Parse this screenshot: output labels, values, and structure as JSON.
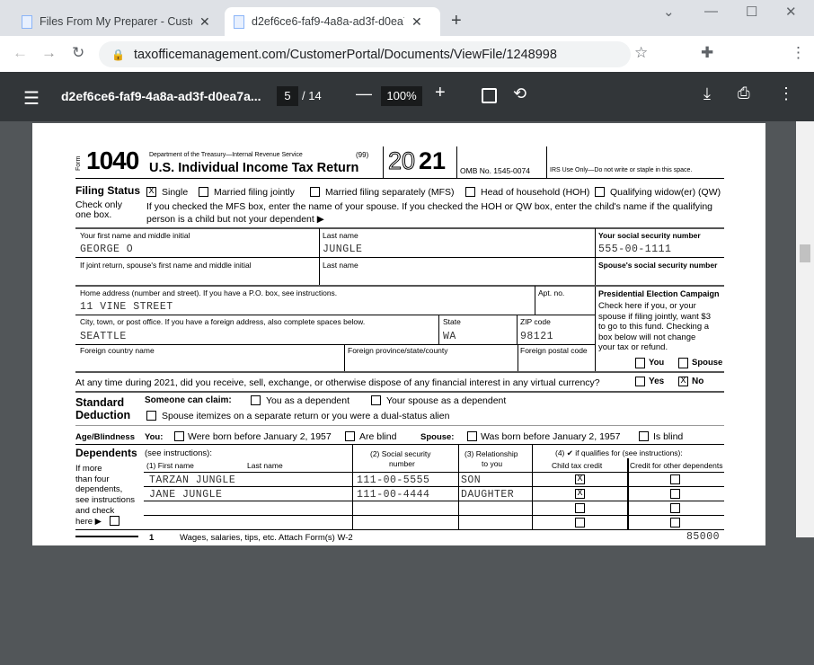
{
  "browser": {
    "tabs": [
      {
        "title": "Files From My Preparer - Customer Portal"
      },
      {
        "title": "d2ef6ce6-faf9-4a8a-ad3f-d0ea7a"
      }
    ],
    "url": "taxofficemanagement.com/CustomerPortal/Documents/ViewFile/1248998"
  },
  "pdf": {
    "title": "d2ef6ce6-faf9-4a8a-ad3f-d0ea7a...",
    "page": "5",
    "total": "/ 14",
    "zoom": "100%"
  },
  "form": {
    "form_label": "Form",
    "number": "1040",
    "dept": "Department of the Treasury—Internal Revenue Service",
    "code": "(99)",
    "title": "U.S. Individual Income Tax Return",
    "year_light": "20",
    "year_bold": "21",
    "omb": "OMB No. 1545-0074",
    "irs_use": "IRS Use Only—Do not write or staple in this space.",
    "filing_status": {
      "label": "Filing Status",
      "sub1": "Check only",
      "sub2": "one box.",
      "options": [
        {
          "label": "Single",
          "checked": true
        },
        {
          "label": "Married filing jointly",
          "checked": false
        },
        {
          "label": "Married filing separately (MFS)",
          "checked": false
        },
        {
          "label": "Head of household (HOH)",
          "checked": false
        },
        {
          "label": "Qualifying widow(er) (QW)",
          "checked": false
        }
      ],
      "note1": "If you checked the MFS box, enter the name of your spouse. If you checked the HOH or QW box, enter the child's name if the qualifying",
      "note2": "person is a child but not your dependent ▶"
    },
    "labels": {
      "first": "Your first name and middle initial",
      "last": "Last name",
      "ssn": "Your social security number",
      "sp_first": "If joint return, spouse's first name and middle initial",
      "sp_last": "Last name",
      "sp_ssn": "Spouse's social security number",
      "home": "Home address (number and street). If you have a P.O. box, see instructions.",
      "apt": "Apt. no.",
      "city": "City, town, or post office. If you have a foreign address, also complete spaces below.",
      "state": "State",
      "zip": "ZIP code",
      "fcountry": "Foreign country name",
      "fprov": "Foreign province/state/county",
      "fpostal": "Foreign postal code"
    },
    "values": {
      "first": "GEORGE O",
      "last": "JUNGLE",
      "ssn": "555-00-1111",
      "home": "11 VINE STREET",
      "city": "SEATTLE",
      "state": "WA",
      "zip": "98121"
    },
    "pec": {
      "title": "Presidential Election Campaign",
      "lines": [
        "Check here if you, or your",
        "spouse if filing jointly, want $3",
        "to go to this fund. Checking a",
        "box below will not change",
        "your tax or refund."
      ],
      "you": "You",
      "spouse": "Spouse"
    },
    "virtual": {
      "question": "At any time during 2021, did you receive, sell, exchange, or otherwise dispose of any financial interest in any virtual currency?",
      "yes": "Yes",
      "no": "No",
      "answer": "No"
    },
    "std": {
      "label1": "Standard",
      "label2": "Deduction",
      "claim": "Someone can claim:",
      "you_dep": "You as a dependent",
      "sp_dep": "Your spouse as a dependent",
      "itemize": "Spouse itemizes on a separate return or you were a dual-status alien"
    },
    "age": {
      "label": "Age/Blindness",
      "you": "You:",
      "you_born": "Were born before January 2, 1957",
      "you_blind": "Are blind",
      "spouse": "Spouse:",
      "sp_born": "Was born before January 2, 1957",
      "sp_blind": "Is blind"
    },
    "deps": {
      "label": "Dependents",
      "see": "(see instructions):",
      "col1a": "(1) First name",
      "col1b": "Last name",
      "col2a": "(2) Social security",
      "col2b": "number",
      "col3a": "(3) Relationship",
      "col3b": "to you",
      "col4": "(4) ✔ if qualifies for (see instructions):",
      "col4a": "Child tax credit",
      "col4b": "Credit for other dependents",
      "side": [
        "If more",
        "than four",
        "dependents,",
        "see instructions",
        "and check",
        "here ▶"
      ],
      "rows": [
        {
          "name": "TARZAN JUNGLE",
          "ssn": "111-00-5555",
          "rel": "SON",
          "ctc": "X",
          "odc": ""
        },
        {
          "name": "JANE JUNGLE",
          "ssn": "111-00-4444",
          "rel": "DAUGHTER",
          "ctc": "X",
          "odc": ""
        },
        {
          "name": "",
          "ssn": "",
          "rel": "",
          "ctc": "",
          "odc": ""
        },
        {
          "name": "",
          "ssn": "",
          "rel": "",
          "ctc": "",
          "odc": ""
        }
      ]
    },
    "line1": {
      "num": "1",
      "label": "Wages, salaries, tips, etc. Attach Form(s) W-2",
      "value": "85000"
    }
  }
}
